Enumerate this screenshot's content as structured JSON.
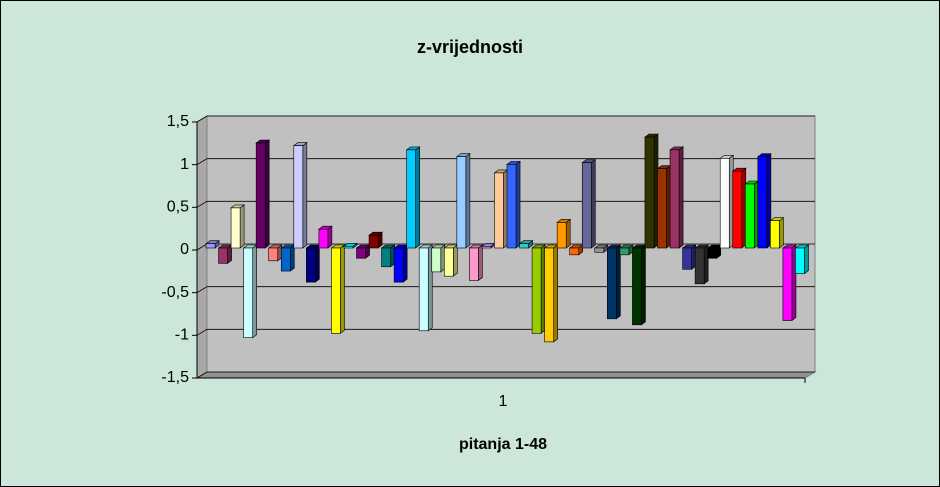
{
  "chart_data": {
    "type": "bar3d",
    "title": "z-vrijednosti",
    "x_label": "pitanja 1-48",
    "categories": [
      "1"
    ],
    "ylim": [
      -1.5,
      1.5
    ],
    "yticks": [
      {
        "value": -1.5,
        "label": "-1,5"
      },
      -1,
      {
        "value": -0.5,
        "label": "-0,5"
      },
      0,
      {
        "value": 0.5,
        "label": "0,5"
      },
      1,
      {
        "value": 1.5,
        "label": "1,5"
      }
    ],
    "grid": true,
    "series": [
      {
        "color": "#9999ff",
        "values": [
          0.05
        ]
      },
      {
        "color": "#993366",
        "values": [
          -0.18
        ]
      },
      {
        "color": "#ffffcc",
        "values": [
          0.47
        ]
      },
      {
        "color": "#ccffff",
        "values": [
          -1.05
        ]
      },
      {
        "color": "#660066",
        "values": [
          1.23
        ]
      },
      {
        "color": "#ff8080",
        "values": [
          -0.15
        ]
      },
      {
        "color": "#0066cc",
        "values": [
          -0.27
        ]
      },
      {
        "color": "#ccccff",
        "values": [
          1.2
        ]
      },
      {
        "color": "#000080",
        "values": [
          -0.4
        ]
      },
      {
        "color": "#ff00ff",
        "values": [
          0.22
        ]
      },
      {
        "color": "#ffff00",
        "values": [
          -1.0
        ]
      },
      {
        "color": "#00ffff",
        "values": [
          0.02
        ]
      },
      {
        "color": "#800080",
        "values": [
          -0.12
        ]
      },
      {
        "color": "#800000",
        "values": [
          0.15
        ]
      },
      {
        "color": "#008080",
        "values": [
          -0.22
        ]
      },
      {
        "color": "#0000ff",
        "values": [
          -0.4
        ]
      },
      {
        "color": "#00ccff",
        "values": [
          1.15
        ]
      },
      {
        "color": "#ccffff",
        "values": [
          -0.97
        ]
      },
      {
        "color": "#ccffcc",
        "values": [
          -0.28
        ]
      },
      {
        "color": "#ffff99",
        "values": [
          -0.33
        ]
      },
      {
        "color": "#99ccff",
        "values": [
          1.07
        ]
      },
      {
        "color": "#ff99cc",
        "values": [
          -0.38
        ]
      },
      {
        "color": "#cc99ff",
        "values": [
          0.02
        ]
      },
      {
        "color": "#ffcc99",
        "values": [
          0.88
        ]
      },
      {
        "color": "#3366ff",
        "values": [
          0.98
        ]
      },
      {
        "color": "#33cccc",
        "values": [
          0.05
        ]
      },
      {
        "color": "#99cc00",
        "values": [
          -1.0
        ]
      },
      {
        "color": "#ffcc00",
        "values": [
          -1.1
        ]
      },
      {
        "color": "#ff9900",
        "values": [
          0.3
        ]
      },
      {
        "color": "#ff6600",
        "values": [
          -0.08
        ]
      },
      {
        "color": "#666699",
        "values": [
          1.0
        ]
      },
      {
        "color": "#969696",
        "values": [
          -0.05
        ]
      },
      {
        "color": "#003366",
        "values": [
          -0.83
        ]
      },
      {
        "color": "#339966",
        "values": [
          -0.08
        ]
      },
      {
        "color": "#003300",
        "values": [
          -0.9
        ]
      },
      {
        "color": "#333300",
        "values": [
          1.3
        ]
      },
      {
        "color": "#993300",
        "values": [
          0.93
        ]
      },
      {
        "color": "#993366",
        "values": [
          1.15
        ]
      },
      {
        "color": "#333399",
        "values": [
          -0.25
        ]
      },
      {
        "color": "#333333",
        "values": [
          -0.42
        ]
      },
      {
        "color": "#000000",
        "values": [
          -0.12
        ]
      },
      {
        "color": "#ffffff",
        "values": [
          1.05
        ]
      },
      {
        "color": "#ff0000",
        "values": [
          0.9
        ]
      },
      {
        "color": "#00ff00",
        "values": [
          0.75
        ]
      },
      {
        "color": "#0000ff",
        "values": [
          1.07
        ]
      },
      {
        "color": "#ffff00",
        "values": [
          0.32
        ]
      },
      {
        "color": "#ff00ff",
        "values": [
          -0.85
        ]
      },
      {
        "color": "#00ffff",
        "values": [
          -0.3
        ]
      }
    ]
  }
}
